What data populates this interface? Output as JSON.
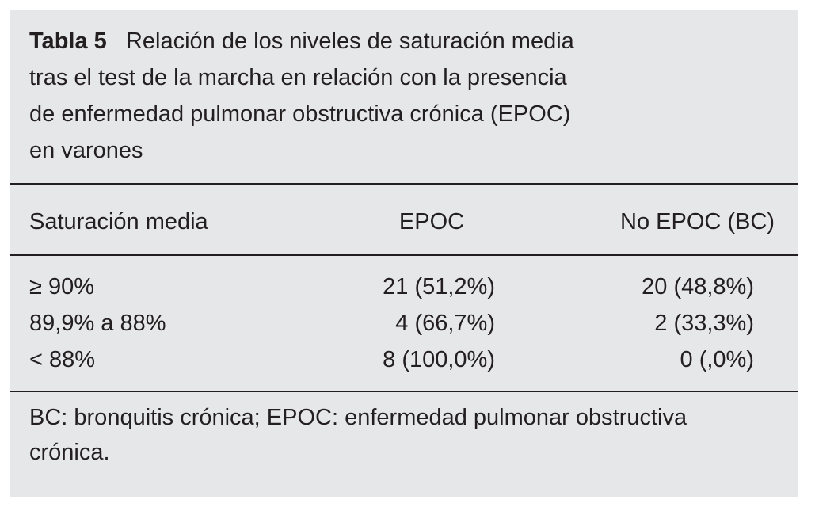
{
  "table_label": "Tabla 5",
  "title_lines": [
    "Relación de los niveles de saturación media",
    "tras el test de la marcha en relación con la presencia",
    "de enfermedad pulmonar obstructiva crónica (EPOC)",
    "en varones"
  ],
  "table": {
    "header": [
      "Saturación media",
      "EPOC",
      "No EPOC (BC)"
    ],
    "rows": [
      [
        "≥ 90%",
        "21 (51,2%)",
        "20 (48,8%)"
      ],
      [
        "89,9% a 88%",
        "4 (66,7%)",
        "2 (33,3%)"
      ],
      [
        "< 88%",
        "8 (100,0%)",
        "0 (,0%)"
      ]
    ]
  },
  "footnote_lines": [
    "BC: bronquitis crónica; EPOC: enfermedad pulmonar obstructiva",
    "crónica."
  ]
}
